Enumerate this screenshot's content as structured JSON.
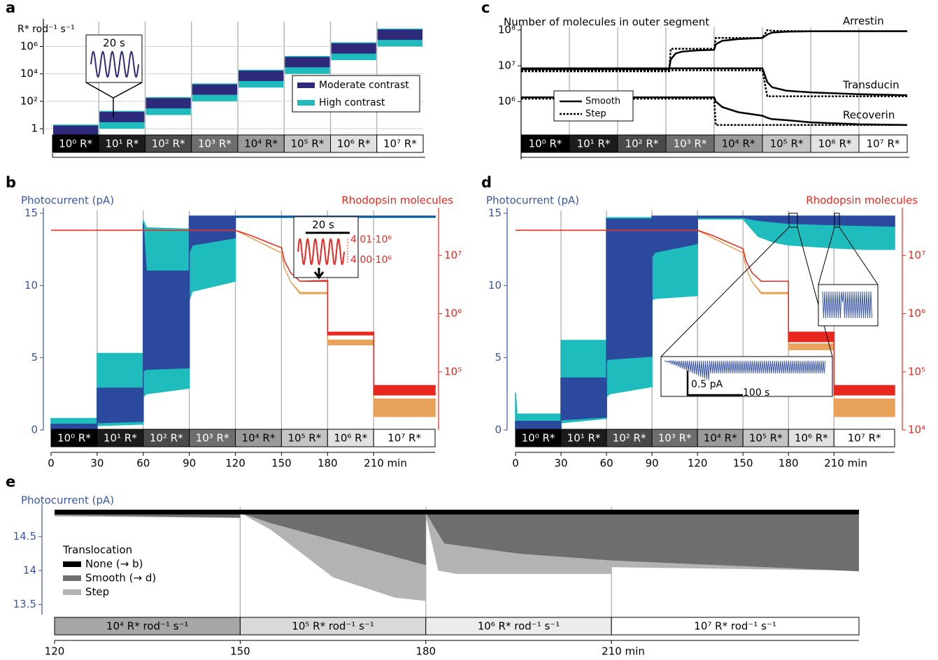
{
  "chart_data": [
    {
      "label": "a",
      "type": "range-bar",
      "ylabel": "R* rod⁻¹ s⁻¹",
      "ylog": true,
      "ylim": [
        0.5,
        40000000
      ],
      "grid": true,
      "yticks": [
        1,
        {
          "value": 100,
          "label": "10²"
        },
        {
          "value": 10000,
          "label": "10⁴"
        },
        {
          "value": 1000000,
          "label": "10⁶"
        }
      ],
      "categories": [
        "10⁰ R*",
        "10¹ R*",
        "10² R*",
        "10³ R*",
        "10⁴ R*",
        "10⁵ R*",
        "10⁶ R*",
        "10⁷ R*"
      ],
      "cell_colors": [
        "#000000",
        "#1c1c1c",
        "#4a4a4a",
        "#6e6e6e",
        "#9a9a9a",
        "#c4c4c4",
        "#e2e2e2",
        "#ffffff"
      ],
      "series": [
        {
          "name": "Moderate contrast",
          "color": "#2d2a7c",
          "low": [
            0.3,
            3,
            30,
            300,
            3000,
            30000,
            300000,
            3000000
          ],
          "high": [
            1.7,
            17,
            170,
            1700,
            17000,
            170000,
            1700000,
            17000000
          ]
        },
        {
          "name": "High contrast",
          "color": "#1ebcbc",
          "low": [
            0.1,
            1,
            10,
            100,
            1000,
            10000,
            100000,
            1000000
          ],
          "high": [
            2,
            20,
            200,
            2000,
            20000,
            200000,
            2000000,
            20000000
          ]
        }
      ],
      "annotations": [
        "20 s"
      ]
    },
    {
      "label": "b",
      "type": "band",
      "ylabel": "Photocurrent (pA)",
      "y2label": "Rhodopsin molecules",
      "ycolor": "#3a56a5",
      "y2color": "#e8281e",
      "xlim": [
        0,
        250
      ],
      "xticks": [
        0,
        30,
        60,
        90,
        120,
        150,
        180,
        {
          "value": 210,
          "label": "210 min"
        }
      ],
      "ylim": [
        0,
        15
      ],
      "yticks": [
        0,
        5,
        10,
        15
      ],
      "y2log": true,
      "y2lim": [
        10000,
        53000000
      ],
      "y2ticks": [
        {
          "value": 100000,
          "label": "10⁵"
        },
        {
          "value": 1000000,
          "label": "10⁶"
        },
        {
          "value": 10000000,
          "label": "10⁷"
        }
      ],
      "light_levels": [
        "10⁰ R*",
        "10¹ R*",
        "10² R*",
        "10³ R*",
        "10⁴ R*",
        "10⁵ R*",
        "10⁶ R*",
        "10⁷ R*"
      ],
      "cell_colors": [
        "#000000",
        "#1c1c1c",
        "#4a4a4a",
        "#6e6e6e",
        "#9a9a9a",
        "#c4c4c4",
        "#e2e2e2",
        "#ffffff"
      ],
      "series": [
        {
          "color": "#1ebcbc",
          "x": [
            0,
            30,
            30,
            60,
            60,
            62,
            90,
            90,
            92,
            120,
            120,
            150,
            150,
            180,
            180,
            210,
            210,
            250
          ],
          "lower": [
            0.1,
            0.1,
            0.3,
            0.4,
            2.3,
            2.5,
            2.9,
            9,
            9.6,
            10.3,
            14.7,
            14.7,
            14.7,
            14.7,
            14.7,
            14.7,
            14.7,
            14.7
          ],
          "upper": [
            0.8,
            0.8,
            5.3,
            5.3,
            14.5,
            14,
            13.9,
            14.8,
            14.8,
            14.8,
            14.8,
            14.8,
            14.8,
            14.8,
            14.8,
            14.8,
            14.8,
            14.8
          ]
        },
        {
          "color": "#2b4a9e",
          "x": [
            0,
            30,
            30,
            60,
            60,
            62,
            90,
            90,
            92,
            120,
            120,
            150,
            150,
            180,
            180,
            210,
            210,
            250
          ],
          "lower": [
            0.1,
            0.1,
            0.5,
            0.6,
            4.1,
            4.2,
            4.3,
            12.3,
            12.8,
            13.3,
            14.75,
            14.75,
            14.75,
            14.75,
            14.75,
            14.75,
            14.75,
            14.75
          ],
          "upper": [
            0.4,
            0.4,
            2.9,
            2.9,
            14.3,
            11,
            11,
            14.8,
            14.8,
            14.8,
            14.8,
            14.8,
            14.8,
            14.8,
            14.8,
            14.8,
            14.8,
            14.8
          ]
        },
        {
          "color": "#e8a25a",
          "axis": "y2",
          "x": [
            0,
            120,
            130,
            150,
            152,
            156,
            162,
            180,
            180,
            210,
            210,
            250
          ],
          "lower": [
            27000000,
            27000000,
            20000000,
            11000000,
            6000000,
            3500000,
            2200000,
            2200000,
            290000,
            290000,
            17000,
            17000
          ],
          "upper": [
            27000000,
            27000000,
            20000000,
            11000000,
            6000000,
            3500000,
            2300000,
            2300000,
            350000,
            350000,
            34000,
            34000
          ]
        },
        {
          "color": "#e8281e",
          "axis": "y2",
          "x": [
            0,
            120,
            130,
            150,
            152,
            156,
            162,
            180,
            180,
            210,
            210,
            250
          ],
          "lower": [
            27000000,
            27000000,
            22000000,
            13500000,
            8000000,
            5000000,
            3600000,
            3600000,
            430000,
            430000,
            40000,
            40000
          ],
          "upper": [
            27000000,
            27000000,
            22000000,
            13500000,
            8000000,
            5000000,
            3600000,
            3700000,
            480000,
            480000,
            58000,
            58000
          ]
        }
      ],
      "annotations": [
        "20 s",
        "4.01·10⁶",
        "4.00·10⁶"
      ]
    },
    {
      "label": "c",
      "type": "line",
      "title": "Number of molecules in outer segment",
      "ylog": true,
      "ylim": [
        145000,
        100000000
      ],
      "yticks": [
        {
          "value": 1000000,
          "label": "10⁶"
        },
        {
          "value": 10000000,
          "label": "10⁷"
        },
        {
          "value": 100000000,
          "label": "10⁸"
        }
      ],
      "xlim": [
        0,
        240
      ],
      "light_levels": [
        "10⁰ R*",
        "10¹ R*",
        "10² R*",
        "10³ R*",
        "10⁴ R*",
        "10⁵ R*",
        "10⁶ R*",
        "10⁷ R*"
      ],
      "cell_colors": [
        "#000000",
        "#1c1c1c",
        "#4a4a4a",
        "#6e6e6e",
        "#9a9a9a",
        "#c4c4c4",
        "#e2e2e2",
        "#ffffff"
      ],
      "x": [
        0,
        92,
        93,
        96,
        100,
        110,
        120,
        121,
        125,
        135,
        150,
        153,
        156,
        165,
        180,
        210,
        240
      ],
      "series": [
        {
          "name": "Smooth",
          "color": "#000000",
          "dash": "none",
          "curves": [
            {
              "label": "Arrestin",
              "values": [
                8000000,
                8000000,
                15000000,
                22000000,
                25000000,
                27000000,
                28000000,
                40000000,
                50000000,
                56000000,
                60000000,
                75000000,
                85000000,
                90000000,
                92000000,
                93000000,
                93000000
              ]
            },
            {
              "label": "Transducin",
              "values": [
                8500000,
                8500000,
                8500000,
                8500000,
                8500000,
                8500000,
                8500000,
                8500000,
                8500000,
                8500000,
                8500000,
                3500000,
                2500000,
                2000000,
                1800000,
                1600000,
                1500000
              ]
            },
            {
              "label": "Recoverin",
              "values": [
                1300000,
                1300000,
                1300000,
                1300000,
                1300000,
                1300000,
                1300000,
                1000000,
                700000,
                500000,
                400000,
                350000,
                320000,
                300000,
                260000,
                230000,
                220000
              ]
            }
          ]
        },
        {
          "name": "Step",
          "color": "#000000",
          "dash": "3 2",
          "curves": [
            {
              "values": [
                7000000,
                7000000,
                30000000,
                30000000,
                30000000,
                30000000,
                30000000,
                60000000,
                60000000,
                60000000,
                60000000,
                100000000,
                95000000,
                94000000,
                93000000,
                93000000,
                93000000
              ]
            },
            {
              "values": [
                7500000,
                7500000,
                7500000,
                7500000,
                7500000,
                7500000,
                7500000,
                7500000,
                7500000,
                7500000,
                7500000,
                1400000,
                1400000,
                1400000,
                1400000,
                1400000,
                1400000
              ]
            },
            {
              "values": [
                1200000,
                1200000,
                1200000,
                1200000,
                1200000,
                1200000,
                1200000,
                220000,
                220000,
                220000,
                220000,
                220000,
                220000,
                220000,
                220000,
                220000,
                220000
              ]
            }
          ]
        }
      ]
    },
    {
      "label": "d",
      "type": "band",
      "ylabel": "Photocurrent (pA)",
      "y2label": "Rhodopsin molecules",
      "ycolor": "#3a56a5",
      "y2color": "#e8281e",
      "xlim": [
        0,
        250
      ],
      "xticks": [
        0,
        30,
        60,
        90,
        120,
        150,
        180,
        {
          "value": 210,
          "label": "210 min"
        }
      ],
      "ylim": [
        0,
        15
      ],
      "yticks": [
        0,
        5,
        10,
        15
      ],
      "y2log": true,
      "y2lim": [
        10000,
        53000000
      ],
      "y2ticks": [
        {
          "value": 10000,
          "label": "10⁴"
        },
        {
          "value": 100000,
          "label": "10⁵"
        },
        {
          "value": 1000000,
          "label": "10⁶"
        },
        {
          "value": 10000000,
          "label": "10⁷"
        }
      ],
      "light_levels": [
        "10⁰ R*",
        "10¹ R*",
        "10² R*",
        "10³ R*",
        "10⁴ R*",
        "10⁵ R*",
        "10⁶ R*",
        "10⁷ R*"
      ],
      "cell_colors": [
        "#000000",
        "#1c1c1c",
        "#4a4a4a",
        "#6e6e6e",
        "#9a9a9a",
        "#c4c4c4",
        "#e2e2e2",
        "#ffffff"
      ],
      "series": [
        {
          "color": "#1ebcbc",
          "x": [
            0,
            1,
            30,
            30,
            60,
            60,
            62,
            90,
            90,
            92,
            120,
            120,
            150,
            160,
            170,
            180,
            195,
            210,
            230,
            250
          ],
          "lower": [
            0.1,
            0.1,
            0.1,
            0.5,
            0.8,
            2.3,
            2.5,
            3,
            9,
            9.1,
            9.3,
            14.6,
            14.6,
            13.4,
            13,
            12.8,
            12.7,
            12.6,
            12.5,
            12.5
          ],
          "upper": [
            2.6,
            1.1,
            1.1,
            6.2,
            6.2,
            14.7,
            14.7,
            14.7,
            14.8,
            14.8,
            14.8,
            14.8,
            14.8,
            14.8,
            14.8,
            14.8,
            14.8,
            14.8,
            14.8,
            14.8
          ]
        },
        {
          "color": "#2b4a9e",
          "x": [
            0,
            1,
            30,
            30,
            60,
            60,
            62,
            90,
            90,
            92,
            120,
            120,
            150,
            160,
            170,
            180,
            195,
            210,
            230,
            250
          ],
          "lower": [
            0.1,
            0.1,
            0.1,
            0.7,
            0.9,
            4.8,
            4.9,
            5.1,
            12,
            12.3,
            12.9,
            14.7,
            14.7,
            14.5,
            14.4,
            14.3,
            14.25,
            14.2,
            14.15,
            14.1
          ],
          "upper": [
            0.6,
            0.6,
            0.6,
            3.6,
            3.6,
            14.6,
            14.6,
            14.6,
            14.8,
            14.8,
            14.8,
            14.8,
            14.8,
            14.8,
            14.8,
            14.8,
            14.8,
            14.8,
            14.8,
            14.8
          ]
        },
        {
          "color": "#e8a25a",
          "axis": "y2",
          "x": [
            0,
            120,
            130,
            150,
            152,
            156,
            162,
            180,
            180,
            210,
            210,
            250
          ],
          "lower": [
            27000000,
            27000000,
            20000000,
            11000000,
            6000000,
            3500000,
            2200000,
            2200000,
            240000,
            240000,
            17000,
            17000
          ],
          "upper": [
            27000000,
            27000000,
            20000000,
            11000000,
            6000000,
            3500000,
            2300000,
            2300000,
            300000,
            300000,
            34000,
            34000
          ]
        },
        {
          "color": "#e8281e",
          "axis": "y2",
          "x": [
            0,
            120,
            130,
            150,
            152,
            156,
            162,
            180,
            180,
            210,
            210,
            250
          ],
          "lower": [
            27000000,
            27000000,
            22000000,
            13000000,
            8000000,
            5000000,
            3600000,
            3600000,
            330000,
            330000,
            40000,
            40000
          ],
          "upper": [
            27000000,
            27000000,
            22000000,
            13000000,
            8000000,
            5000000,
            3600000,
            3600000,
            480000,
            480000,
            58000,
            58000
          ]
        }
      ],
      "annotations": [
        "0.5 pA",
        "100 s"
      ]
    },
    {
      "label": "e",
      "type": "area",
      "ylabel": "Photocurrent (pA)",
      "ycolor": "#3a56a5",
      "legend_title": "Translocation",
      "xlim": [
        120,
        250
      ],
      "xticks": [
        120,
        150,
        180,
        {
          "value": 210,
          "label": "210 min"
        }
      ],
      "ylim": [
        13.35,
        14.9
      ],
      "yticks": [
        13.5,
        14,
        14.5
      ],
      "light_levels": [
        "10⁴ R* rod⁻¹ s⁻¹",
        "10⁵ R* rod⁻¹ s⁻¹",
        "10⁶ R* rod⁻¹ s⁻¹",
        "10⁷ R* rod⁻¹ s⁻¹"
      ],
      "cell_colors": [
        "#a6a6a6",
        "#d9d9d9",
        "#ececec",
        "#ffffff"
      ],
      "series": [
        {
          "name": "None (→ b)",
          "color": "#000000",
          "x": [
            120,
            250
          ],
          "values": [
            14.83,
            14.83
          ]
        },
        {
          "name": "Smooth (→ d)",
          "color": "#6e6e6e",
          "x": [
            120,
            150,
            150,
            155,
            165,
            180,
            180,
            183,
            195,
            210,
            210,
            250
          ],
          "values": [
            14.82,
            14.78,
            14.85,
            14.7,
            14.45,
            14.08,
            14.85,
            14.4,
            14.25,
            14.15,
            14.15,
            13.99
          ]
        },
        {
          "name": "Step",
          "color": "#b3b3b3",
          "x": [
            120,
            150,
            150,
            155,
            165,
            175,
            180,
            180,
            182,
            185,
            210,
            210,
            250
          ],
          "values": [
            14.8,
            14.78,
            14.85,
            14.6,
            13.9,
            13.6,
            13.55,
            14.8,
            14,
            13.95,
            13.95,
            14.05,
            14
          ]
        }
      ]
    }
  ]
}
